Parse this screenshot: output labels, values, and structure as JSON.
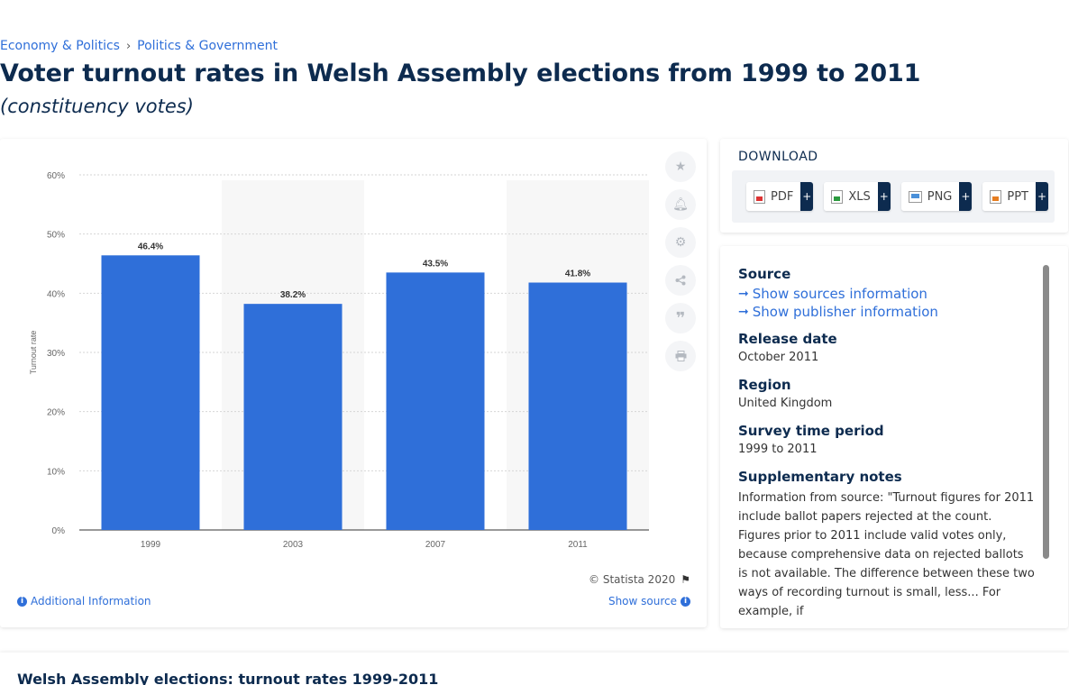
{
  "breadcrumb": {
    "items": [
      "Economy & Politics",
      "Politics & Government"
    ],
    "separator": "›"
  },
  "page": {
    "title": "Voter turnout rates in Welsh Assembly elections from 1999 to 2011",
    "subtitle": "(constituency votes)"
  },
  "chart_footer": {
    "copyright": "© Statista 2020",
    "additional_info": "Additional Information",
    "show_source": "Show source"
  },
  "tools": [
    "star-icon",
    "bell-icon",
    "gear-icon",
    "share-icon",
    "quote-icon",
    "print-icon"
  ],
  "download": {
    "title": "DOWNLOAD",
    "buttons": [
      {
        "label": "PDF",
        "icon": "pdf-icon",
        "plus": "+"
      },
      {
        "label": "XLS",
        "icon": "xls-icon",
        "plus": "+"
      },
      {
        "label": "PNG",
        "icon": "png-icon",
        "plus": "+"
      },
      {
        "label": "PPT",
        "icon": "ppt-icon",
        "plus": "+"
      }
    ]
  },
  "info": {
    "source_label": "Source",
    "show_sources": "Show sources information",
    "show_publisher": "Show publisher information",
    "release_label": "Release date",
    "release_value": "October 2011",
    "region_label": "Region",
    "region_value": "United Kingdom",
    "survey_label": "Survey time period",
    "survey_value": "1999 to 2011",
    "notes_label": "Supplementary notes",
    "notes_value": "Information from source: \"Turnout figures for 2011 include ballot papers rejected at the count. Figures prior to 2011 include valid votes only, because comprehensive data on rejected ballots is not available. The difference between these two ways of recording turnout is small, less... For example, if"
  },
  "bottom": {
    "title": "Welsh Assembly elections: turnout rates 1999-2011"
  },
  "colors": {
    "bar": "#2f6fd9",
    "link": "#2f6fd9",
    "title": "#0d2b4f"
  },
  "chart_data": {
    "type": "bar",
    "categories": [
      "1999",
      "2003",
      "2007",
      "2011"
    ],
    "values": [
      46.4,
      38.2,
      43.5,
      41.8
    ],
    "value_labels": [
      "46.4%",
      "38.2%",
      "43.5%",
      "41.8%"
    ],
    "ylabel": "Turnout rate",
    "ylim": [
      0,
      60
    ],
    "yticks": [
      0,
      10,
      20,
      30,
      40,
      50,
      60
    ],
    "ytick_labels": [
      "0%",
      "10%",
      "20%",
      "30%",
      "40%",
      "50%",
      "60%"
    ],
    "grid": true
  }
}
